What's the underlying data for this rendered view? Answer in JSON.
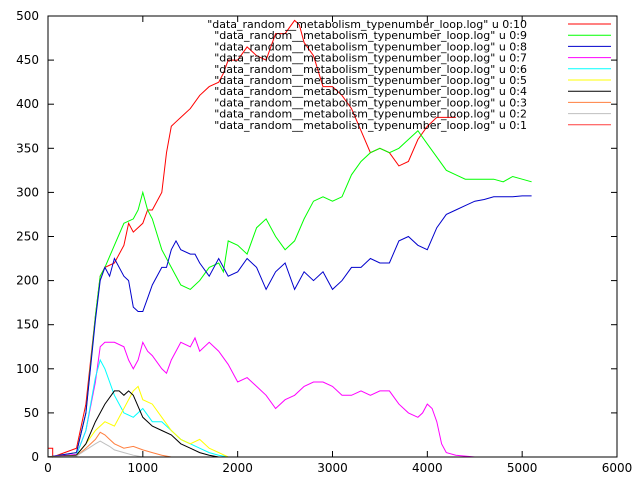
{
  "chart_data": {
    "type": "line",
    "xlim": [
      0,
      6000
    ],
    "ylim": [
      0,
      500
    ],
    "x_ticks": [
      0,
      1000,
      2000,
      3000,
      4000,
      5000,
      6000
    ],
    "y_ticks": [
      0,
      50,
      100,
      150,
      200,
      250,
      300,
      350,
      400,
      450,
      500
    ],
    "grid": false,
    "legend_position": "top-right",
    "series": [
      {
        "name": "\"data_random__metabolism_typenumber_loop.log\" u 0:10",
        "color": "#ff0000",
        "x": [
          0,
          50,
          50,
          300,
          400,
          500,
          550,
          600,
          700,
          800,
          850,
          900,
          1000,
          1050,
          1100,
          1200,
          1250,
          1300,
          1350,
          1400,
          1500,
          1600,
          1700,
          1800,
          1850,
          1900,
          2000,
          2100,
          2200,
          2300,
          2400,
          2500,
          2600,
          2650,
          2700,
          2800,
          2900,
          3000,
          3100,
          3200,
          3300,
          3400,
          3500,
          3600,
          3700,
          3800,
          3900,
          4000,
          4100,
          4200,
          4300
        ],
        "y": [
          10,
          10,
          0,
          10,
          60,
          160,
          205,
          215,
          220,
          240,
          265,
          255,
          265,
          280,
          280,
          300,
          345,
          375,
          380,
          385,
          395,
          410,
          420,
          425,
          435,
          450,
          450,
          465,
          455,
          450,
          480,
          480,
          495,
          490,
          470,
          455,
          420,
          420,
          410,
          395,
          370,
          345,
          350,
          345,
          330,
          335,
          360,
          375,
          385,
          385,
          385
        ]
      },
      {
        "name": "\"data_random__metabolism_typenumber_loop.log\" u 0:9",
        "color": "#00ff00",
        "x": [
          0,
          300,
          400,
          500,
          550,
          600,
          700,
          800,
          900,
          950,
          1000,
          1050,
          1100,
          1200,
          1300,
          1400,
          1500,
          1600,
          1700,
          1800,
          1850,
          1900,
          2000,
          2100,
          2200,
          2300,
          2400,
          2500,
          2600,
          2700,
          2800,
          2900,
          3000,
          3100,
          3200,
          3300,
          3400,
          3500,
          3600,
          3700,
          3800,
          3900,
          4000,
          4100,
          4200,
          4300,
          4400,
          4500,
          4600,
          4700,
          4800,
          4900,
          5000,
          5100
        ],
        "y": [
          0,
          5,
          50,
          160,
          205,
          215,
          240,
          265,
          270,
          280,
          300,
          280,
          270,
          235,
          215,
          195,
          190,
          200,
          215,
          220,
          210,
          245,
          240,
          230,
          260,
          270,
          250,
          235,
          245,
          270,
          290,
          295,
          290,
          295,
          320,
          335,
          345,
          350,
          345,
          350,
          360,
          370,
          355,
          340,
          325,
          320,
          315,
          315,
          315,
          315,
          312,
          318,
          315,
          312
        ]
      },
      {
        "name": "\"data_random__metabolism_typenumber_loop.log\" u 0:8",
        "color": "#0000cc",
        "x": [
          0,
          300,
          400,
          500,
          550,
          600,
          650,
          700,
          800,
          850,
          900,
          950,
          1000,
          1050,
          1100,
          1200,
          1250,
          1300,
          1350,
          1400,
          1500,
          1550,
          1600,
          1700,
          1800,
          1900,
          2000,
          2100,
          2200,
          2300,
          2400,
          2500,
          2600,
          2700,
          2800,
          2900,
          3000,
          3100,
          3200,
          3300,
          3400,
          3500,
          3600,
          3700,
          3800,
          3900,
          4000,
          4100,
          4200,
          4300,
          4400,
          4500,
          4600,
          4700,
          4800,
          4900,
          5000,
          5100
        ],
        "y": [
          0,
          5,
          50,
          155,
          200,
          215,
          205,
          225,
          205,
          200,
          170,
          165,
          165,
          180,
          195,
          215,
          215,
          235,
          245,
          235,
          230,
          230,
          220,
          205,
          225,
          205,
          210,
          225,
          215,
          190,
          210,
          220,
          190,
          210,
          200,
          210,
          190,
          200,
          215,
          215,
          225,
          220,
          220,
          245,
          250,
          240,
          235,
          260,
          275,
          280,
          285,
          290,
          292,
          295,
          295,
          295,
          296,
          296
        ]
      },
      {
        "name": "\"data_random__metabolism_typenumber_loop.log\" u 0:7",
        "color": "#ff00ff",
        "x": [
          0,
          300,
          400,
          500,
          550,
          600,
          700,
          800,
          850,
          900,
          950,
          1000,
          1050,
          1100,
          1200,
          1250,
          1300,
          1400,
          1500,
          1550,
          1600,
          1700,
          1800,
          1900,
          2000,
          2100,
          2200,
          2300,
          2400,
          2500,
          2600,
          2700,
          2800,
          2900,
          3000,
          3100,
          3200,
          3300,
          3400,
          3500,
          3600,
          3700,
          3800,
          3900,
          3950,
          4000,
          4050,
          4100,
          4150,
          4200,
          4300,
          4400,
          4500,
          4600,
          4700,
          4800
        ],
        "y": [
          0,
          3,
          30,
          85,
          125,
          130,
          130,
          125,
          110,
          100,
          110,
          130,
          120,
          115,
          100,
          95,
          110,
          130,
          125,
          135,
          120,
          130,
          120,
          105,
          85,
          90,
          80,
          70,
          55,
          65,
          70,
          80,
          85,
          85,
          80,
          70,
          70,
          75,
          70,
          75,
          75,
          60,
          50,
          45,
          50,
          60,
          55,
          40,
          15,
          5,
          2,
          1,
          0,
          0,
          0,
          0
        ]
      },
      {
        "name": "\"data_random__metabolism_typenumber_loop.log\" u 0:6",
        "color": "#00ffff",
        "x": [
          0,
          300,
          400,
          500,
          550,
          600,
          700,
          800,
          900,
          1000,
          1100,
          1200,
          1300,
          1400,
          1500,
          1600,
          1700,
          1800,
          1900
        ],
        "y": [
          0,
          2,
          30,
          90,
          110,
          100,
          70,
          50,
          45,
          55,
          40,
          40,
          30,
          20,
          15,
          10,
          5,
          2,
          0
        ]
      },
      {
        "name": "\"data_random__metabolism_typenumber_loop.log\" u 0:5",
        "color": "#ffff00",
        "x": [
          0,
          300,
          400,
          500,
          600,
          700,
          800,
          900,
          950,
          1000,
          1100,
          1200,
          1300,
          1400,
          1500,
          1600,
          1700,
          1800,
          1900
        ],
        "y": [
          0,
          2,
          15,
          30,
          40,
          35,
          55,
          75,
          80,
          65,
          60,
          45,
          30,
          20,
          15,
          20,
          10,
          5,
          0
        ]
      },
      {
        "name": "\"data_random__metabolism_typenumber_loop.log\" u 0:4",
        "color": "#000000",
        "x": [
          0,
          300,
          400,
          500,
          600,
          700,
          750,
          800,
          850,
          900,
          1000,
          1100,
          1200,
          1300,
          1400,
          1500,
          1600,
          1700,
          1800
        ],
        "y": [
          0,
          2,
          15,
          40,
          60,
          75,
          75,
          70,
          75,
          70,
          45,
          35,
          30,
          25,
          15,
          10,
          5,
          2,
          0
        ]
      },
      {
        "name": "\"data_random__metabolism_typenumber_loop.log\" u 0:3",
        "color": "#ff7f3f",
        "x": [
          0,
          300,
          400,
          500,
          550,
          600,
          650,
          700,
          800,
          900,
          1000,
          1100,
          1200,
          1300
        ],
        "y": [
          0,
          1,
          10,
          20,
          28,
          25,
          20,
          15,
          10,
          12,
          8,
          5,
          2,
          0
        ]
      },
      {
        "name": "\"data_random__metabolism_typenumber_loop.log\" u 0:2",
        "color": "#bfbfbf",
        "x": [
          0,
          300,
          400,
          500,
          550,
          600,
          650,
          700,
          800,
          900,
          1000
        ],
        "y": [
          0,
          1,
          8,
          15,
          18,
          15,
          12,
          8,
          5,
          2,
          0
        ]
      },
      {
        "name": "\"data_random__metabolism_typenumber_loop.log\" u 0:1",
        "color": "#ff3f3f",
        "x": [
          0,
          5000
        ],
        "y": [
          0,
          0
        ]
      }
    ]
  }
}
